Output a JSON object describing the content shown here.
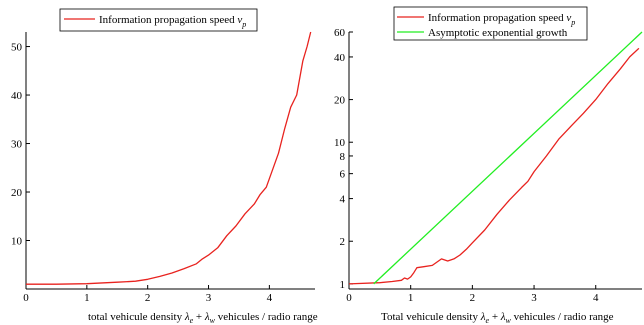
{
  "chart_data": [
    {
      "type": "line",
      "xlabel_parts": [
        "total vehicule density  ",
        "λ",
        "e",
        " + ",
        "λ",
        "w",
        " vehicules / radio range"
      ],
      "xlim": [
        0,
        4.75
      ],
      "ylim": [
        0,
        53
      ],
      "y_scale": "linear",
      "x_ticks": [
        0,
        1,
        2,
        3,
        4
      ],
      "y_ticks": [
        10,
        20,
        30,
        40,
        50
      ],
      "legend": {
        "placement": "top",
        "border": true
      },
      "series": [
        {
          "name_parts": [
            "Information propagation speed  ",
            "v",
            "p"
          ],
          "color": "#e8231f",
          "x": [
            0,
            0.5,
            1.0,
            1.5,
            1.8,
            2.0,
            2.2,
            2.4,
            2.6,
            2.8,
            2.9,
            3.0,
            3.15,
            3.3,
            3.45,
            3.6,
            3.75,
            3.85,
            3.95,
            4.05,
            4.15,
            4.25,
            4.35,
            4.45,
            4.55,
            4.62,
            4.68
          ],
          "y": [
            1.0,
            1.0,
            1.1,
            1.4,
            1.6,
            2.0,
            2.6,
            3.3,
            4.2,
            5.2,
            6.2,
            7.0,
            8.5,
            11.0,
            13.0,
            15.5,
            17.5,
            19.5,
            21.0,
            24.5,
            28.0,
            33.0,
            37.5,
            40.0,
            47.0,
            50.0,
            53.0
          ]
        }
      ]
    },
    {
      "type": "line",
      "xlabel_parts": [
        "Total vehicule density  ",
        "λ",
        "e",
        " + ",
        "λ",
        "w",
        " vehicules / radio range"
      ],
      "xlim": [
        0,
        4.75
      ],
      "ylim": [
        0.92,
        60
      ],
      "y_scale": "log",
      "x_ticks": [
        0,
        1,
        2,
        3,
        4
      ],
      "y_ticks": [
        1,
        2,
        4,
        6,
        8,
        10,
        20,
        40,
        60
      ],
      "legend": {
        "placement": "top",
        "border": true
      },
      "series": [
        {
          "name_parts": [
            "Information propagation speed  ",
            "v",
            "p"
          ],
          "color": "#e8231f",
          "x": [
            0,
            0.5,
            0.7,
            0.85,
            0.9,
            0.95,
            1.0,
            1.05,
            1.1,
            1.2,
            1.35,
            1.5,
            1.6,
            1.7,
            1.8,
            1.9,
            2.0,
            2.2,
            2.4,
            2.6,
            2.8,
            2.9,
            3.0,
            3.2,
            3.4,
            3.6,
            3.8,
            4.0,
            4.2,
            4.4,
            4.55,
            4.7
          ],
          "y": [
            1.0,
            1.02,
            1.04,
            1.06,
            1.1,
            1.08,
            1.12,
            1.2,
            1.3,
            1.32,
            1.35,
            1.5,
            1.45,
            1.5,
            1.6,
            1.75,
            1.95,
            2.4,
            3.1,
            3.9,
            4.8,
            5.3,
            6.2,
            8.0,
            10.5,
            13.0,
            16.0,
            20.0,
            26.0,
            33.0,
            40.0,
            46.0
          ]
        },
        {
          "name": "Asymptotic exponential growth",
          "color": "#22ee22",
          "x": [
            0.4,
            4.75
          ],
          "y": [
            1.0,
            60.0
          ]
        }
      ]
    }
  ]
}
